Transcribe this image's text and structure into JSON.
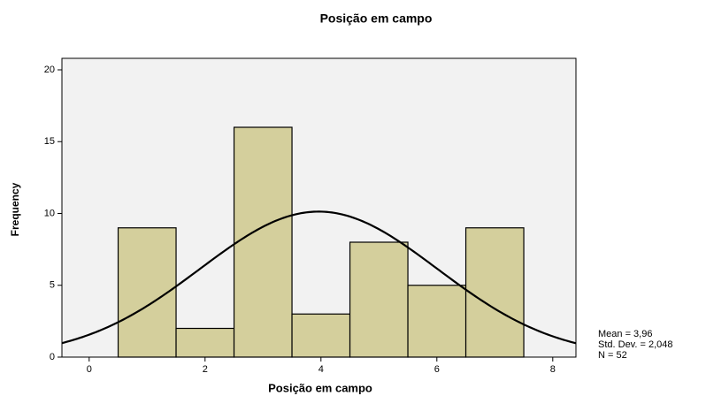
{
  "chart_data": {
    "type": "histogram",
    "title": "Posição em campo",
    "xlabel": "Posição em campo",
    "ylabel": "Frequency",
    "bins": [
      0.5,
      1.5,
      2.5,
      3.5,
      4.5,
      5.5,
      6.5,
      7.5
    ],
    "values": [
      9,
      2,
      16,
      3,
      8,
      5,
      9
    ],
    "color": "#d4cf9c",
    "xlim": [
      -0.47,
      8.4
    ],
    "xticks": [
      0,
      2,
      4,
      6,
      8
    ],
    "ylim": [
      0,
      20.8
    ],
    "yticks": [
      0,
      5,
      10,
      15,
      20
    ],
    "normal": {
      "mean": 3.96,
      "std_dev": 2.048,
      "n": 52,
      "stat_labels": [
        "Mean = 3,96",
        "Std. Dev. = 2,048",
        "N = 52"
      ]
    }
  }
}
